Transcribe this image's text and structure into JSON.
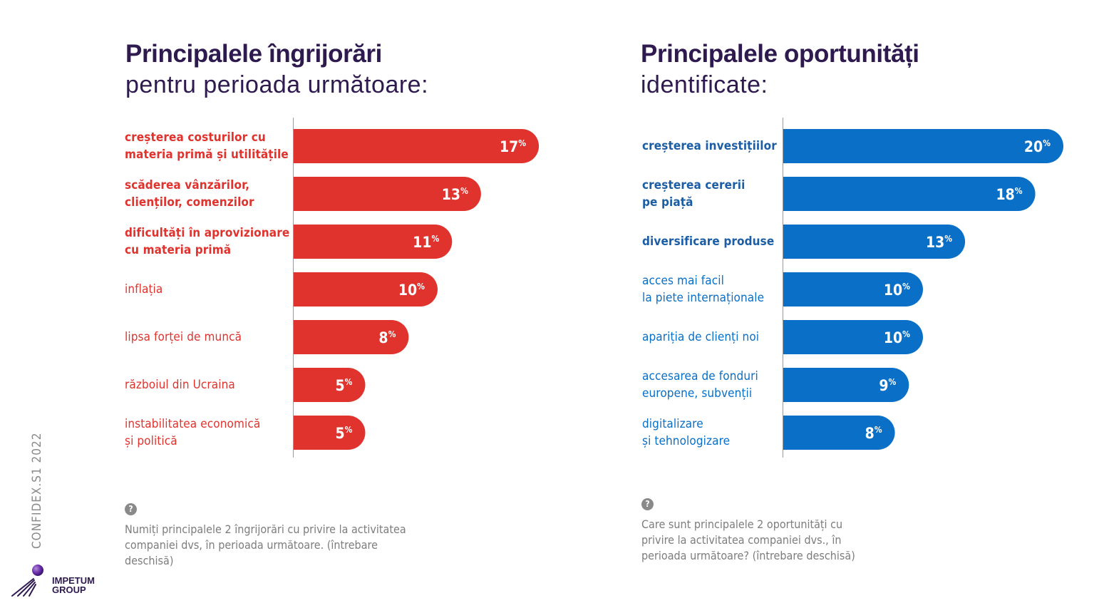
{
  "side_label": "CONFIDEX.S1 2022",
  "logo_text": "IMPETUM\nGROUP",
  "colors": {
    "concerns": "#e0332e",
    "opportunities": "#0a6fc7",
    "title": "#2e1a4f"
  },
  "left": {
    "title_bold": "Principalele îngrijorări",
    "title_light": "pentru perioada următoare:",
    "question_icon": "?",
    "note": "Numiți principalele 2 îngrijorări cu privire la activitatea\ncompaniei dvs, în perioada următoare. (întrebare\ndeschisă)"
  },
  "right": {
    "title_bold": "Principalele oportunități",
    "title_light": "identificate:",
    "question_icon": "?",
    "note": "Care sunt principalele 2 oportunități cu\nprivire la activitatea companiei dvs., în\nperioada următoare? (întrebare deschisă)"
  },
  "chart_data": [
    {
      "type": "bar",
      "orientation": "horizontal",
      "title": "Principalele îngrijorări pentru perioada următoare:",
      "categories": [
        "creșterea costurilor cu\nmateria primă și utilitățile",
        "scăderea vânzărilor,\nclienților, comenzilor",
        "dificultăți în aprovizionare\ncu materia primă",
        "inflația",
        "lipsa forței de muncă",
        "războiul din Ucraina",
        "instabilitatea economică\nși politică"
      ],
      "values": [
        17,
        13,
        11,
        10,
        8,
        5,
        5
      ],
      "value_suffix": "%",
      "bold_categories": [
        true,
        true,
        true,
        false,
        false,
        false,
        false
      ],
      "color": "#e0332e"
    },
    {
      "type": "bar",
      "orientation": "horizontal",
      "title": "Principalele oportunități identificate:",
      "categories": [
        "creșterea investițiilor",
        "creșterea cererii\npe piață",
        "diversificare produse",
        "acces mai facil\nla piete internaționale",
        "apariția de clienți noi",
        "accesarea de fonduri\neuropene, subvenții",
        "digitalizare\nși tehnologizare"
      ],
      "values": [
        20,
        18,
        13,
        10,
        10,
        9,
        8
      ],
      "value_suffix": "%",
      "bold_categories": [
        true,
        true,
        true,
        false,
        false,
        false,
        false
      ],
      "color": "#0a6fc7"
    }
  ]
}
